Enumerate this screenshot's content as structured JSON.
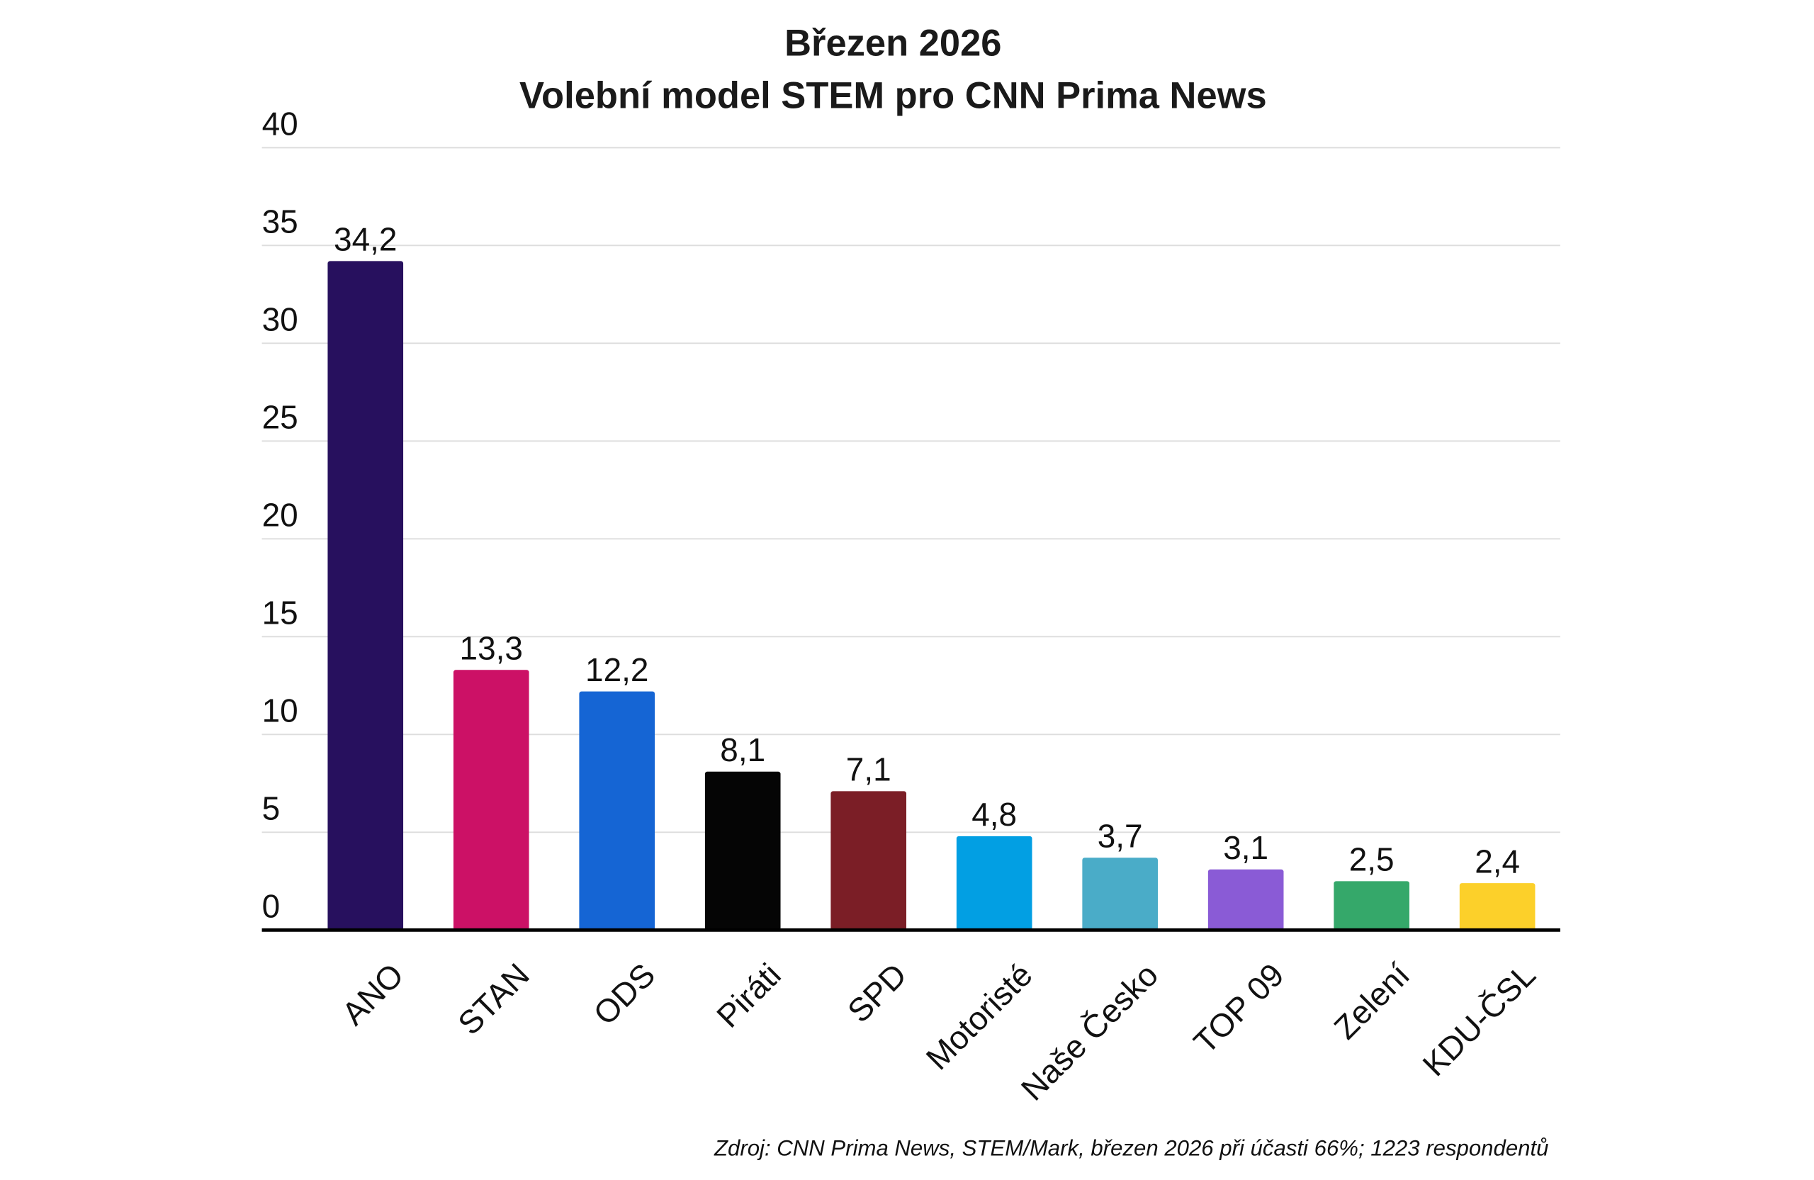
{
  "chart_data": {
    "type": "bar",
    "title": "Březen 2026",
    "subtitle": "Volební model STEM pro CNN Prima News",
    "categories": [
      "ANO",
      "STAN",
      "ODS",
      "Piráti",
      "SPD",
      "Motoristé",
      "Naše Česko",
      "TOP 09",
      "Zelení",
      "KDU-ČSL"
    ],
    "values": [
      34.2,
      13.3,
      12.2,
      8.1,
      7.1,
      4.8,
      3.7,
      3.1,
      2.5,
      2.4
    ],
    "value_labels": [
      "34,2",
      "13,3",
      "12,2",
      "8,1",
      "7,1",
      "4,8",
      "3,7",
      "3,1",
      "2,5",
      "2,4"
    ],
    "colors": [
      "#27105e",
      "#cc1166",
      "#1565d4",
      "#050505",
      "#7b1e26",
      "#029fe3",
      "#4aacc8",
      "#8a5bd6",
      "#35a86a",
      "#fcd02a"
    ],
    "ylim": [
      0,
      40
    ],
    "yticks": [
      0,
      5,
      10,
      15,
      20,
      25,
      30,
      35,
      40
    ],
    "grid": true,
    "source": "Zdroj: CNN Prima News, STEM/Mark, březen 2026 při účasti 66%; 1223 respondentů"
  }
}
